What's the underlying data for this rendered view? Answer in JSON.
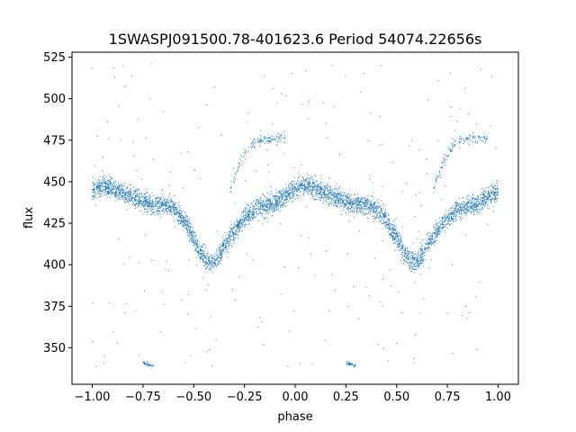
{
  "chart_data": {
    "type": "scatter",
    "title": "1SWASPJ091500.78-401623.6 Period 54074.22656s",
    "xlabel": "phase",
    "ylabel": "flux",
    "xlim": [
      -1.1,
      1.1
    ],
    "ylim": [
      328,
      528
    ],
    "x_ticks": [
      -1.0,
      -0.75,
      -0.5,
      -0.25,
      0.0,
      0.25,
      0.5,
      0.75,
      1.0
    ],
    "x_tick_labels": [
      "−1.00",
      "−0.75",
      "−0.50",
      "−0.25",
      "0.00",
      "0.25",
      "0.50",
      "0.75",
      "1.00"
    ],
    "y_ticks": [
      350,
      375,
      400,
      425,
      450,
      475,
      500,
      525
    ],
    "y_tick_labels": [
      "350",
      "375",
      "400",
      "425",
      "450",
      "475",
      "500",
      "525"
    ],
    "grid": false,
    "marker_color": "#1f77b4",
    "series": [
      {
        "trend": [
          [
            -1.0,
            445
          ],
          [
            -0.95,
            448
          ],
          [
            -0.9,
            446
          ],
          [
            -0.85,
            443
          ],
          [
            -0.8,
            441
          ],
          [
            -0.75,
            438
          ],
          [
            -0.7,
            436
          ],
          [
            -0.65,
            436
          ],
          [
            -0.6,
            434
          ],
          [
            -0.55,
            427
          ],
          [
            -0.5,
            416
          ],
          [
            -0.47,
            408
          ],
          [
            -0.44,
            403
          ],
          [
            -0.41,
            401
          ],
          [
            -0.38,
            404
          ],
          [
            -0.35,
            412
          ],
          [
            -0.3,
            420
          ],
          [
            -0.25,
            428
          ],
          [
            -0.2,
            433
          ],
          [
            -0.15,
            435
          ],
          [
            -0.1,
            437
          ],
          [
            -0.05,
            441
          ],
          [
            0.0,
            446
          ],
          [
            0.05,
            448
          ],
          [
            0.1,
            446
          ],
          [
            0.15,
            443
          ],
          [
            0.2,
            441
          ],
          [
            0.25,
            438
          ],
          [
            0.3,
            436
          ],
          [
            0.35,
            436
          ],
          [
            0.4,
            434
          ],
          [
            0.45,
            427
          ],
          [
            0.5,
            416
          ],
          [
            0.53,
            408
          ],
          [
            0.56,
            403
          ],
          [
            0.59,
            401
          ],
          [
            0.62,
            404
          ],
          [
            0.65,
            412
          ],
          [
            0.7,
            420
          ],
          [
            0.75,
            428
          ],
          [
            0.8,
            433
          ],
          [
            0.85,
            435
          ],
          [
            0.9,
            437
          ],
          [
            0.95,
            441
          ],
          [
            1.0,
            445
          ]
        ],
        "upper_branch": [
          [
            -0.32,
            445
          ],
          [
            -0.27,
            462
          ],
          [
            -0.22,
            472
          ],
          [
            -0.15,
            476
          ],
          [
            -0.05,
            476
          ],
          [
            0.68,
            445
          ],
          [
            0.73,
            462
          ],
          [
            0.78,
            472
          ],
          [
            0.85,
            476
          ],
          [
            0.95,
            476
          ]
        ],
        "lower_clumps": [
          [
            -0.75,
            341
          ],
          [
            -0.7,
            339
          ],
          [
            0.25,
            341
          ],
          [
            0.3,
            339
          ]
        ],
        "scatter_y_range": [
          338,
          522
        ]
      }
    ]
  }
}
